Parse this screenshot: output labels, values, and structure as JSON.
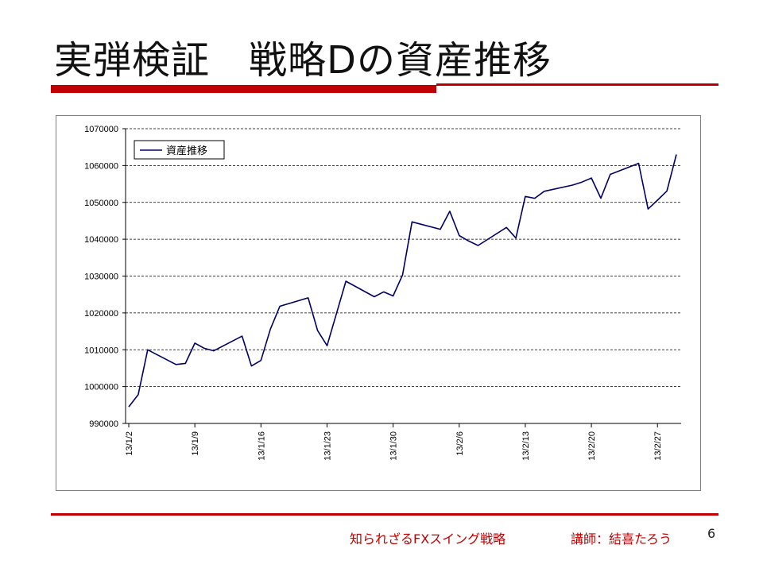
{
  "slide": {
    "title": "実弾検証　戦略Dの資産推移",
    "footer_left": "知られざるFXスイング戦略",
    "footer_right": "講師：結喜たろう",
    "page_number": "6",
    "accent_color": "#c00000"
  },
  "chart_data": {
    "type": "line",
    "title": "",
    "xlabel": "",
    "ylabel": "",
    "ylim": [
      990000,
      1070000
    ],
    "yticks": [
      990000,
      1000000,
      1010000,
      1020000,
      1030000,
      1040000,
      1050000,
      1060000,
      1070000
    ],
    "x_tick_labels": [
      "13/1/2",
      "13/1/9",
      "13/1/16",
      "13/1/23",
      "13/1/30",
      "13/2/6",
      "13/2/13",
      "13/2/20",
      "13/2/27"
    ],
    "grid": "horizontal dashed",
    "legend": "top-left",
    "series": [
      {
        "name": "資産推移",
        "color": "#000066",
        "points": [
          [
            "2013-01-02",
            994500
          ],
          [
            "2013-01-03",
            997800
          ],
          [
            "2013-01-04",
            1010000
          ],
          [
            "2013-01-07",
            1006000
          ],
          [
            "2013-01-08",
            1006300
          ],
          [
            "2013-01-09",
            1011800
          ],
          [
            "2013-01-10",
            1010400
          ],
          [
            "2013-01-11",
            1009700
          ],
          [
            "2013-01-14",
            1013700
          ],
          [
            "2013-01-15",
            1005600
          ],
          [
            "2013-01-16",
            1007100
          ],
          [
            "2013-01-17",
            1015600
          ],
          [
            "2013-01-18",
            1021800
          ],
          [
            "2013-01-21",
            1024100
          ],
          [
            "2013-01-22",
            1015200
          ],
          [
            "2013-01-23",
            1011100
          ],
          [
            "2013-01-24",
            1019800
          ],
          [
            "2013-01-25",
            1028600
          ],
          [
            "2013-01-28",
            1024400
          ],
          [
            "2013-01-29",
            1025700
          ],
          [
            "2013-01-30",
            1024600
          ],
          [
            "2013-01-31",
            1030300
          ],
          [
            "2013-02-01",
            1044700
          ],
          [
            "2013-02-04",
            1042700
          ],
          [
            "2013-02-05",
            1047600
          ],
          [
            "2013-02-06",
            1041000
          ],
          [
            "2013-02-07",
            1039500
          ],
          [
            "2013-02-08",
            1038300
          ],
          [
            "2013-02-11",
            1043200
          ],
          [
            "2013-02-12",
            1040300
          ],
          [
            "2013-02-13",
            1051600
          ],
          [
            "2013-02-14",
            1051100
          ],
          [
            "2013-02-15",
            1053000
          ],
          [
            "2013-02-18",
            1054700
          ],
          [
            "2013-02-19",
            1055500
          ],
          [
            "2013-02-20",
            1056600
          ],
          [
            "2013-02-21",
            1051100
          ],
          [
            "2013-02-22",
            1057600
          ],
          [
            "2013-02-25",
            1060600
          ],
          [
            "2013-02-26",
            1048200
          ],
          [
            "2013-02-27",
            1050600
          ],
          [
            "2013-02-28",
            1053100
          ],
          [
            "2013-03-01",
            1063000
          ]
        ]
      }
    ]
  }
}
